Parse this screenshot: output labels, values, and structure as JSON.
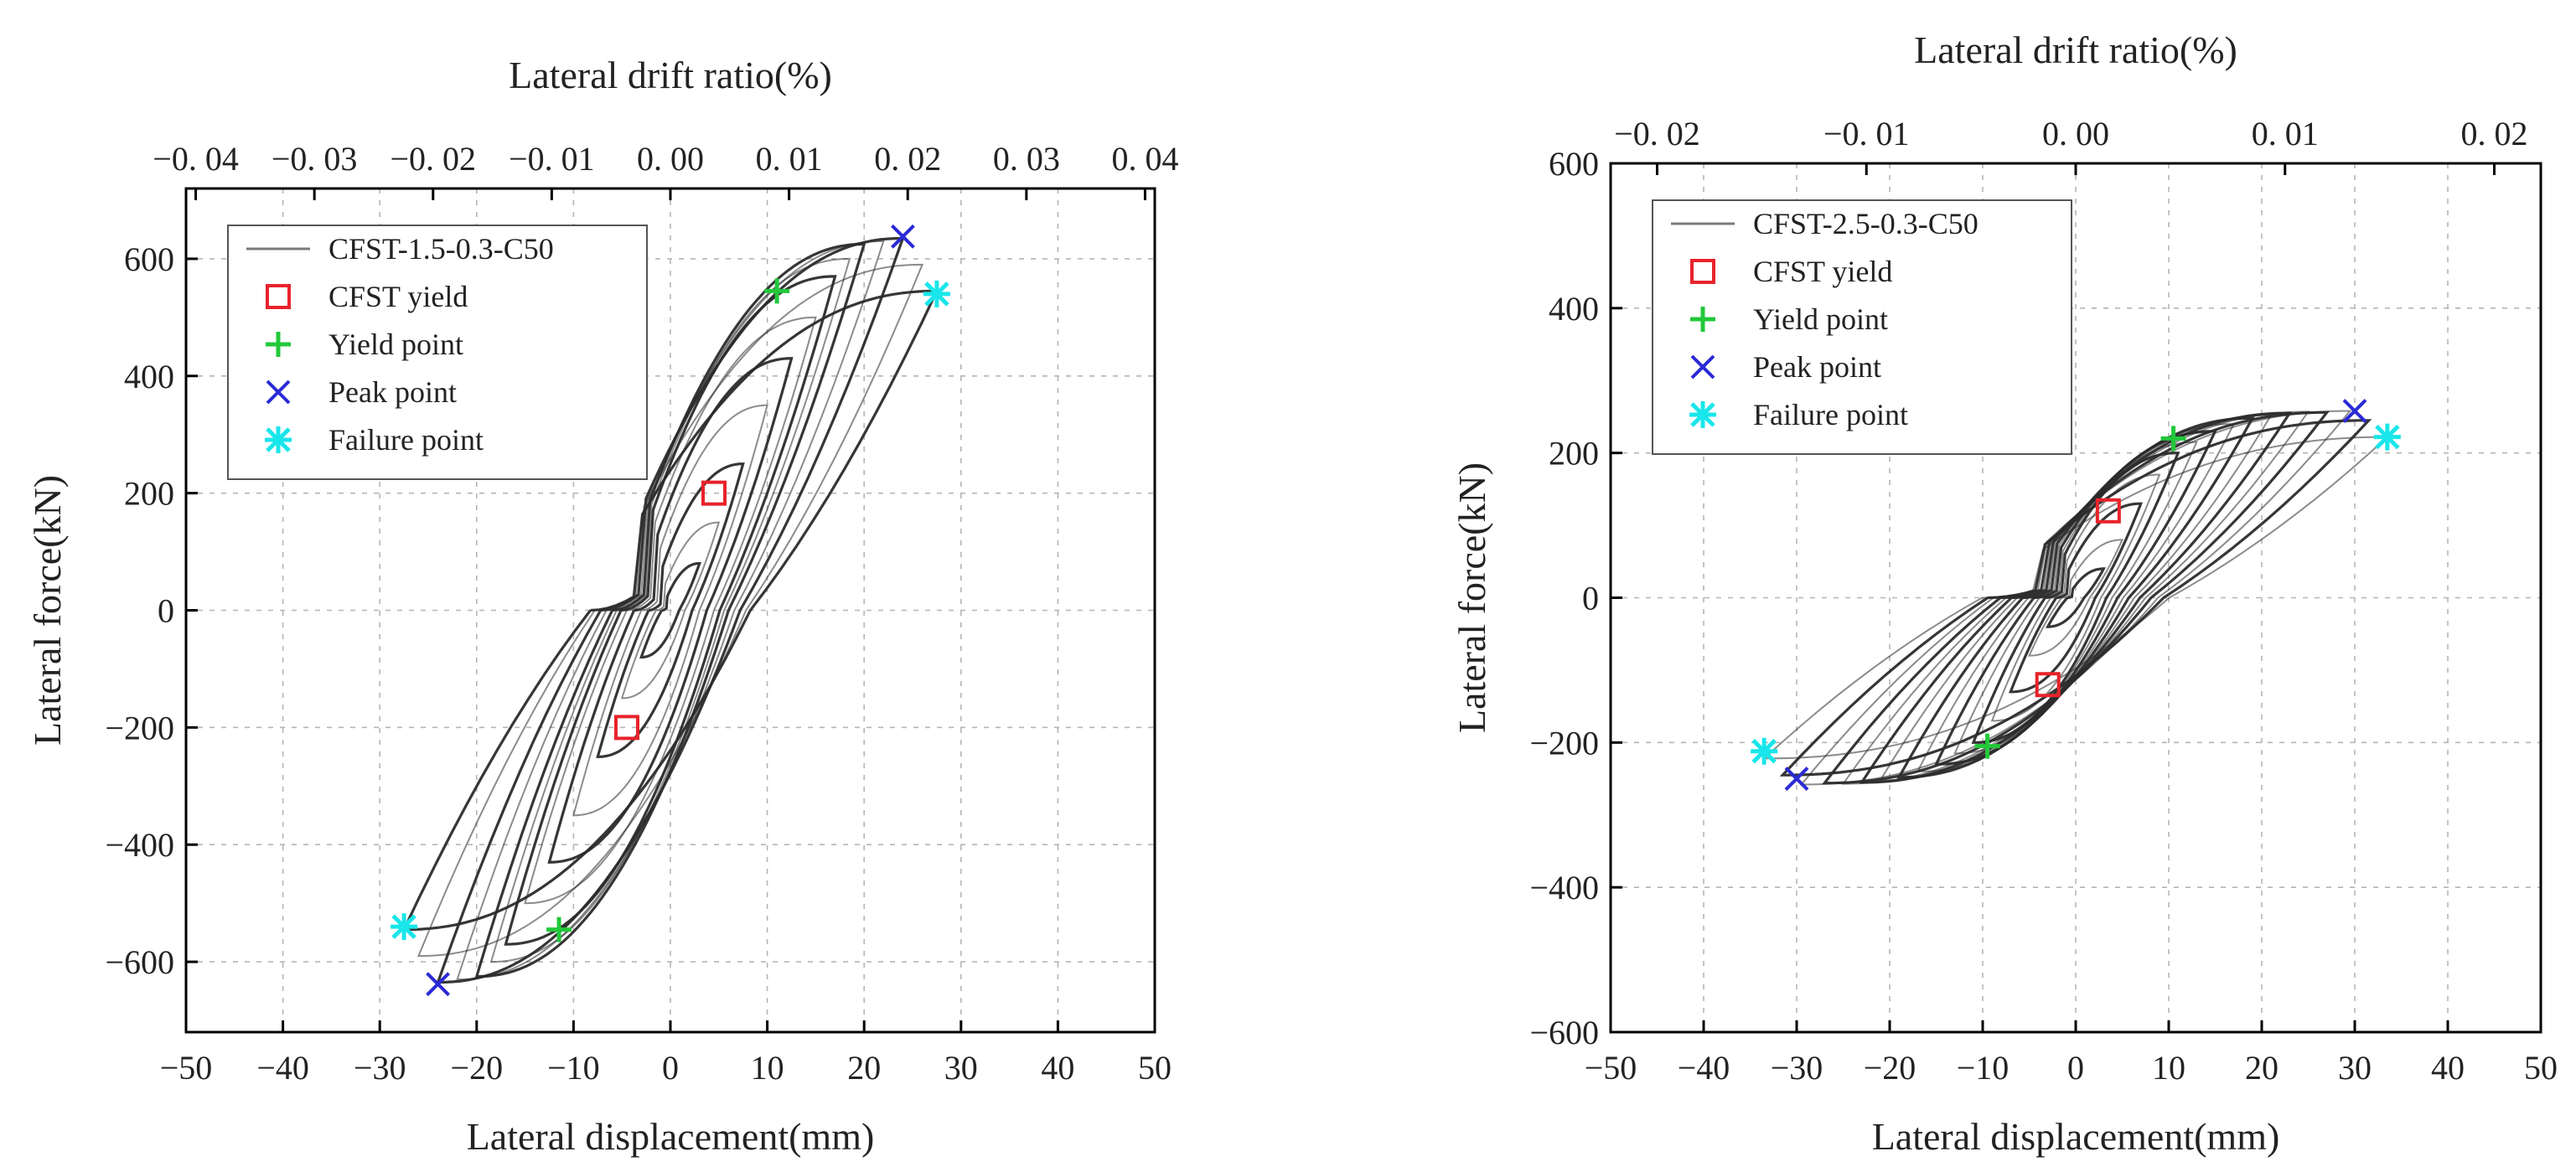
{
  "colors": {
    "cfst_yield": "#e8232b",
    "yield_point": "#22c83a",
    "peak_point": "#2a2ad6",
    "failure_point": "#19e6ea",
    "curve": "#2b2b2b"
  },
  "chart_data": [
    {
      "type": "line",
      "id": "left",
      "xlabel": "Lateral displacement(mm)",
      "ylabel": "Lateral force(kN)",
      "top_xlabel": "Lateral drift ratio(%)",
      "xlim": [
        -50,
        50
      ],
      "ylim": [
        -720,
        720
      ],
      "xticks": [
        -50,
        -40,
        -30,
        -20,
        -10,
        0,
        10,
        20,
        30,
        40,
        50
      ],
      "xtick_labels": [
        "−50",
        "−40",
        "−30",
        "−20",
        "−10",
        "0",
        "10",
        "20",
        "30",
        "40",
        "50"
      ],
      "yticks": [
        -600,
        -400,
        -200,
        0,
        200,
        400,
        600
      ],
      "ytick_labels": [
        "−600",
        "−400",
        "−200",
        "0",
        "200",
        "400",
        "600"
      ],
      "top_ticks": [
        -0.04,
        -0.03,
        -0.02,
        -0.01,
        0.0,
        0.01,
        0.02,
        0.03,
        0.04
      ],
      "top_tick_labels": [
        "−0. 04",
        "−0. 03",
        "−0. 02",
        "−0. 01",
        "0. 00",
        "0. 01",
        "0. 02",
        "0. 03",
        "0. 04"
      ],
      "top_scale_mm_per_unit": 1225,
      "grid": true,
      "legend_position": "top-left",
      "legend": [
        {
          "label": "CFST-1.5-0.3-C50",
          "kind": "line"
        },
        {
          "label": "CFST yield",
          "kind": "square"
        },
        {
          "label": "Yield point",
          "kind": "plus"
        },
        {
          "label": "Peak point",
          "kind": "cross"
        },
        {
          "label": "Failure point",
          "kind": "star"
        }
      ],
      "hysteresis": {
        "cycles": [
          {
            "disp": 3,
            "peak": 80
          },
          {
            "disp": 5,
            "peak": 150
          },
          {
            "disp": 7.5,
            "peak": 250
          },
          {
            "disp": 10,
            "peak": 350
          },
          {
            "disp": 12.5,
            "peak": 430
          },
          {
            "disp": 15,
            "peak": 500
          },
          {
            "disp": 17,
            "peak": 570
          },
          {
            "disp": 18.5,
            "peak": 600
          },
          {
            "disp": 20,
            "peak": 625
          },
          {
            "disp": 22,
            "peak": 630
          },
          {
            "disp": 24,
            "peak": 635
          },
          {
            "disp": 26,
            "peak": 590
          },
          {
            "disp": 27.5,
            "peak": 545
          }
        ],
        "return_intercept_ratio": 0.3
      },
      "markers": {
        "cfst_yield": [
          [
            4.5,
            200
          ],
          [
            -4.5,
            -200
          ]
        ],
        "yield_point": [
          [
            11,
            545
          ],
          [
            -11.5,
            -545
          ]
        ],
        "peak_point": [
          [
            24,
            638
          ],
          [
            -24,
            -638
          ]
        ],
        "failure_point": [
          [
            27.5,
            540
          ],
          [
            -27.5,
            -540
          ]
        ]
      }
    },
    {
      "type": "line",
      "id": "right",
      "xlabel": "Lateral displacement(mm)",
      "ylabel": "Lateral force(kN)",
      "top_xlabel": "Lateral drift ratio(%)",
      "xlim": [
        -50,
        50
      ],
      "ylim": [
        -600,
        600
      ],
      "xticks": [
        -50,
        -40,
        -30,
        -20,
        -10,
        0,
        10,
        20,
        30,
        40,
        50
      ],
      "xtick_labels": [
        "−50",
        "−40",
        "−30",
        "−20",
        "−10",
        "0",
        "10",
        "20",
        "30",
        "40",
        "50"
      ],
      "yticks": [
        -600,
        -400,
        -200,
        0,
        200,
        400,
        600
      ],
      "ytick_labels": [
        "−600",
        "−400",
        "−200",
        "0",
        "200",
        "400",
        "600"
      ],
      "top_ticks": [
        -0.02,
        -0.01,
        0.0,
        0.01,
        0.02
      ],
      "top_tick_labels": [
        "−0. 02",
        "−0. 01",
        "0. 00",
        "0. 01",
        "0. 02"
      ],
      "top_scale_mm_per_unit": 2250,
      "grid": true,
      "legend_position": "top-left",
      "legend": [
        {
          "label": "CFST-2.5-0.3-C50",
          "kind": "line"
        },
        {
          "label": "CFST yield",
          "kind": "square"
        },
        {
          "label": "Yield point",
          "kind": "plus"
        },
        {
          "label": "Peak point",
          "kind": "cross"
        },
        {
          "label": "Failure point",
          "kind": "star"
        }
      ],
      "hysteresis": {
        "cycles": [
          {
            "disp": 3,
            "peak": 40
          },
          {
            "disp": 5,
            "peak": 80
          },
          {
            "disp": 7,
            "peak": 130
          },
          {
            "disp": 9,
            "peak": 170
          },
          {
            "disp": 11,
            "peak": 200
          },
          {
            "disp": 13,
            "peak": 215
          },
          {
            "disp": 15,
            "peak": 230
          },
          {
            "disp": 17,
            "peak": 240
          },
          {
            "disp": 19,
            "peak": 248
          },
          {
            "disp": 21,
            "peak": 252
          },
          {
            "disp": 23,
            "peak": 255
          },
          {
            "disp": 25,
            "peak": 257
          },
          {
            "disp": 27,
            "peak": 256
          },
          {
            "disp": 29.5,
            "peak": 258
          },
          {
            "disp": 31.5,
            "peak": 245
          },
          {
            "disp": 33.5,
            "peak": 222
          }
        ],
        "return_intercept_ratio": 0.3
      },
      "markers": {
        "cfst_yield": [
          [
            3.5,
            120
          ],
          [
            -3,
            -120
          ]
        ],
        "yield_point": [
          [
            10.5,
            220
          ],
          [
            -9.5,
            -205
          ]
        ],
        "peak_point": [
          [
            30,
            258
          ],
          [
            -30,
            -250
          ]
        ],
        "failure_point": [
          [
            33.5,
            222
          ],
          [
            -33.5,
            -212
          ]
        ]
      }
    }
  ]
}
